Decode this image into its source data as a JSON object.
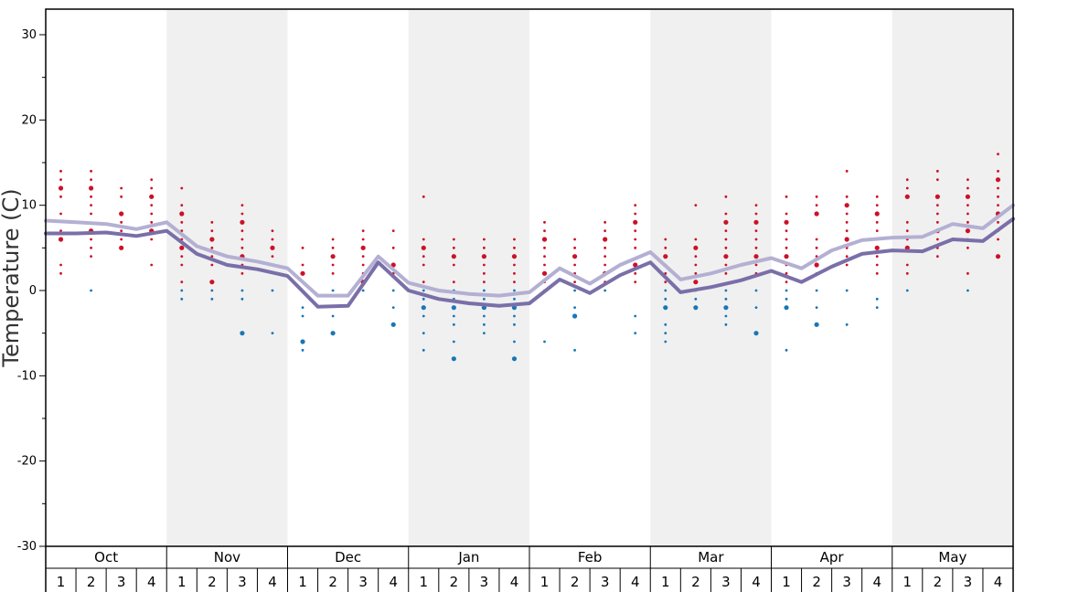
{
  "chart_data": {
    "type": "line",
    "title": "",
    "xlabel": "",
    "ylabel": "Temperature (C)",
    "ylim": [
      -30,
      33
    ],
    "yticks": [
      30,
      20,
      10,
      0,
      -10,
      -20,
      -30
    ],
    "grid": false,
    "months": [
      "Oct",
      "Nov",
      "Dec",
      "Jan",
      "Feb",
      "Mar",
      "Apr",
      "May"
    ],
    "weeks": [
      "1",
      "2",
      "3",
      "4"
    ],
    "colors": {
      "upper_line": "#b3b0d3",
      "lower_line": "#7a6fa8",
      "warm_dots": "#cc1128",
      "cold_dots": "#1877b5",
      "shade": "#f0f0f0"
    },
    "series": [
      {
        "values": [
          8.2,
          8.0,
          7.8,
          7.2,
          8.0,
          5.2,
          4.0,
          3.4,
          2.6,
          -0.6,
          -0.6,
          4.0,
          0.9,
          0.0,
          -0.4,
          -0.6,
          -0.2,
          2.6,
          0.8,
          3.0,
          4.5,
          1.3,
          2.0,
          3.0,
          3.8,
          2.6,
          4.7,
          5.9,
          6.2,
          6.3,
          7.8,
          7.3,
          10.0
        ]
      },
      {
        "values": [
          6.7,
          6.7,
          6.8,
          6.4,
          7.0,
          4.3,
          3.0,
          2.5,
          1.7,
          -1.9,
          -1.8,
          3.3,
          0.0,
          -1.0,
          -1.5,
          -1.8,
          -1.5,
          1.3,
          -0.3,
          1.8,
          3.3,
          -0.2,
          0.4,
          1.2,
          2.3,
          1.0,
          2.8,
          4.3,
          4.7,
          4.6,
          6.0,
          5.8,
          8.4
        ]
      }
    ],
    "warm_dots": [
      [
        [
          14,
          13,
          12,
          11,
          9,
          7,
          6,
          3,
          2
        ],
        [
          14,
          13,
          12,
          11,
          10,
          9,
          7,
          6,
          5,
          4
        ],
        [
          12,
          11,
          9,
          8,
          7,
          6,
          5
        ],
        [
          13,
          12,
          11,
          10,
          9,
          8,
          7,
          6,
          3
        ]
      ],
      [
        [
          12,
          10,
          9,
          8,
          7,
          6,
          5,
          4,
          3,
          1
        ],
        [
          8,
          7,
          6,
          5,
          4,
          3,
          1
        ],
        [
          10,
          9,
          8,
          7,
          6,
          5,
          4,
          3,
          2
        ],
        [
          7,
          6,
          5,
          4,
          3
        ]
      ],
      [
        [
          5,
          3,
          2,
          1
        ],
        [
          6,
          5,
          4,
          3,
          2
        ],
        [
          7,
          6,
          5,
          4,
          3,
          2,
          1
        ],
        [
          7,
          5,
          3,
          2
        ]
      ],
      [
        [
          11,
          6,
          5,
          4,
          3,
          1
        ],
        [
          6,
          5,
          4,
          3,
          1
        ],
        [
          6,
          5,
          4,
          3,
          2,
          1
        ],
        [
          6,
          5,
          4,
          3,
          2,
          1
        ]
      ],
      [
        [
          8,
          7,
          6,
          5,
          4,
          3,
          2,
          1
        ],
        [
          6,
          5,
          4,
          3,
          2,
          1
        ],
        [
          8,
          7,
          6,
          5,
          4,
          3,
          2,
          1
        ],
        [
          10,
          9,
          8,
          7,
          6,
          5,
          3,
          2,
          1
        ]
      ],
      [
        [
          6,
          5,
          4,
          3,
          2,
          1
        ],
        [
          10,
          6,
          5,
          4,
          3,
          2,
          1
        ],
        [
          11,
          9,
          8,
          7,
          6,
          5,
          4,
          3,
          2
        ],
        [
          10,
          9,
          8,
          7,
          6,
          5,
          4,
          3,
          2
        ]
      ],
      [
        [
          11,
          9,
          8,
          7,
          6,
          5,
          4,
          3,
          2,
          1
        ],
        [
          11,
          10,
          9,
          6,
          5,
          4,
          3,
          2
        ],
        [
          14,
          11,
          10,
          9,
          8,
          7,
          6,
          5,
          4,
          3
        ],
        [
          11,
          10,
          9,
          8,
          7,
          6,
          5,
          4,
          3,
          2
        ]
      ],
      [
        [
          13,
          12,
          11,
          8,
          7,
          6,
          5,
          3,
          2
        ],
        [
          14,
          13,
          11,
          10,
          9,
          8,
          7,
          6,
          5,
          4
        ],
        [
          13,
          12,
          11,
          10,
          9,
          8,
          7,
          6,
          5,
          2
        ],
        [
          16,
          14,
          13,
          12,
          11,
          10,
          9,
          8,
          7,
          6,
          4
        ]
      ]
    ],
    "cold_dots": [
      [
        [],
        [
          0
        ],
        [],
        []
      ],
      [
        [
          0,
          -1
        ],
        [
          0,
          -1
        ],
        [
          0,
          -1,
          -5
        ],
        [
          0,
          -5
        ]
      ],
      [
        [
          -2,
          -3,
          -6,
          -7
        ],
        [
          0,
          -3,
          -5
        ],
        [
          0
        ],
        [
          0,
          -2,
          -4
        ]
      ],
      [
        [
          0,
          -1,
          -2,
          -3,
          -5,
          -7
        ],
        [
          0,
          -1,
          -2,
          -3,
          -4,
          -6,
          -8
        ],
        [
          0,
          -1,
          -2,
          -3,
          -4,
          -5
        ],
        [
          0,
          -1,
          -2,
          -3,
          -4,
          -6,
          -8
        ]
      ],
      [
        [
          0,
          -6
        ],
        [
          0,
          -2,
          -3,
          -7
        ],
        [
          0
        ],
        [
          -3,
          -5
        ]
      ],
      [
        [
          0,
          -1,
          -2,
          -4,
          -5,
          -6
        ],
        [
          0,
          -1,
          -2
        ],
        [
          0,
          -1,
          -2,
          -3,
          -4
        ],
        [
          0,
          -2,
          -5
        ]
      ],
      [
        [
          0,
          -1,
          -2,
          -7
        ],
        [
          0,
          -2,
          -4
        ],
        [
          0,
          -4
        ],
        [
          -1,
          -2
        ]
      ],
      [
        [
          0
        ],
        [],
        [
          0
        ],
        []
      ]
    ]
  }
}
